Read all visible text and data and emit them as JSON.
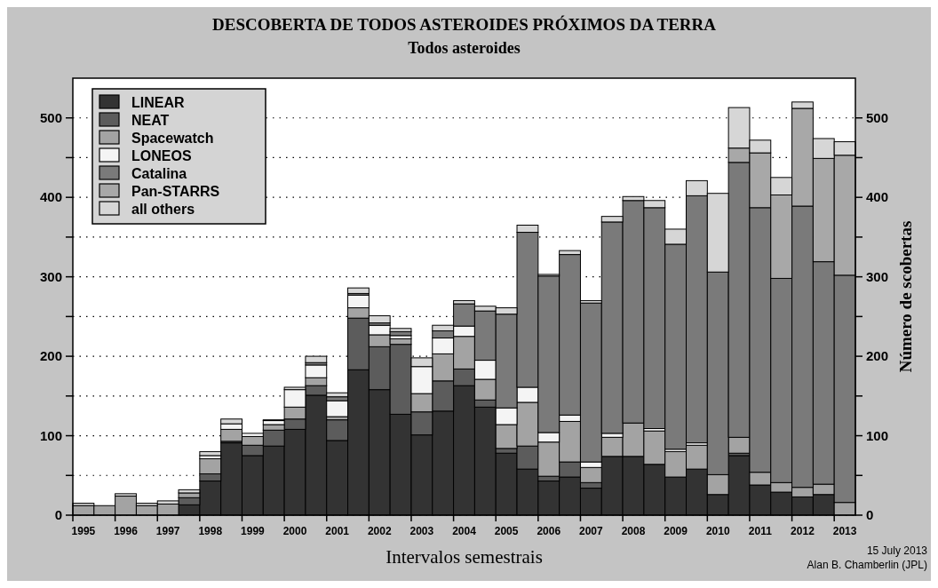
{
  "chart_data": {
    "type": "bar",
    "title": "DESCOBERTA DE TODOS ASTEROIDES PRÓXIMOS DA TERRA",
    "subtitle": "Todos asteroides",
    "xlabel": "Intervalos semestrais",
    "y2label": "Número de scobertas",
    "categories": [
      "1995",
      null,
      "1996",
      null,
      "1997",
      null,
      "1998",
      null,
      "1999",
      null,
      "2000",
      null,
      "2001",
      null,
      "2002",
      null,
      "2003",
      null,
      "2004",
      null,
      "2005",
      null,
      "2006",
      null,
      "2007",
      null,
      "2008",
      null,
      "2009",
      null,
      "2010",
      null,
      "2011",
      null,
      "2012",
      null,
      "2013"
    ],
    "stacked": true,
    "series": [
      {
        "name": "LINEAR",
        "color": "#333333",
        "values": [
          0,
          0,
          null,
          0,
          null,
          13,
          43,
          91,
          75,
          87,
          108,
          151,
          94,
          183,
          158,
          127,
          101,
          131,
          163,
          136,
          78,
          58,
          43,
          48,
          34,
          74,
          74,
          64,
          48,
          58,
          26,
          75,
          38,
          29,
          23,
          26,
          null
        ]
      },
      {
        "name": "NEAT",
        "color": "#5c5c5c",
        "values": [
          0,
          0,
          0,
          0,
          0,
          9,
          9,
          2,
          13,
          20,
          13,
          12,
          26,
          65,
          54,
          88,
          29,
          38,
          21,
          9,
          6,
          29,
          6,
          19,
          7,
          0,
          0,
          0,
          0,
          0,
          null,
          3,
          0,
          0,
          0,
          0,
          0
        ]
      },
      {
        "name": "Spacewatch",
        "color": "#a3a3a3",
        "values": [
          12,
          12,
          24,
          12,
          14,
          6,
          19,
          15,
          11,
          7,
          15,
          10,
          4,
          13,
          15,
          7,
          23,
          34,
          41,
          26,
          30,
          55,
          43,
          51,
          19,
          24,
          42,
          42,
          32,
          30,
          25,
          20,
          16,
          12,
          12,
          13,
          16
        ]
      },
      {
        "name": "LONEOS",
        "color": "#f4f4f4",
        "values": [
          0,
          0,
          0,
          0,
          0,
          0,
          4,
          7,
          4,
          5,
          22,
          16,
          20,
          16,
          12,
          4,
          34,
          20,
          13,
          24,
          21,
          19,
          12,
          8,
          7,
          5,
          0,
          3,
          3,
          3,
          0,
          0,
          0,
          0,
          0,
          0,
          0
        ]
      },
      {
        "name": "Catalina",
        "color": "#7a7a7a",
        "values": [
          0,
          0,
          0,
          0,
          0,
          0,
          0,
          0,
          0,
          0,
          0,
          3,
          5,
          2,
          3,
          5,
          null,
          9,
          28,
          62,
          118,
          195,
          197,
          202,
          200,
          266,
          280,
          278,
          258,
          311,
          255,
          346,
          333,
          257,
          354,
          280,
          286
        ]
      },
      {
        "name": "Pan-STARRS",
        "color": "#a8a8a8",
        "values": [
          0,
          0,
          0,
          0,
          0,
          0,
          0,
          0,
          0,
          0,
          0,
          0,
          0,
          0,
          0,
          0,
          0,
          0,
          0,
          0,
          0,
          0,
          0,
          0,
          0,
          0,
          0,
          0,
          0,
          0,
          0,
          18,
          69,
          105,
          123,
          130,
          151
        ]
      },
      {
        "name": "all others",
        "color": "#d6d6d6",
        "values": [
          3,
          0,
          3,
          3,
          4,
          4,
          5,
          6,
          0,
          1,
          3,
          8,
          5,
          7,
          9,
          4,
          11,
          7,
          4,
          6,
          8,
          9,
          2,
          5,
          3,
          7,
          5,
          9,
          19,
          19,
          99,
          51,
          16,
          22,
          8,
          25,
          17
        ]
      }
    ],
    "ylim": [
      0,
      550
    ],
    "yticks": [
      0,
      {
        "value": 50,
        "label": null
      },
      100,
      {
        "value": 150,
        "label": null
      },
      200,
      {
        "value": 250,
        "label": null
      },
      300,
      {
        "value": 350,
        "label": null
      },
      400,
      {
        "value": 450,
        "label": null
      },
      500
    ],
    "y2lim": [
      0,
      550
    ],
    "y2ticks": [
      0,
      {
        "value": 50,
        "label": null
      },
      100,
      {
        "value": 150,
        "label": null
      },
      200,
      {
        "value": 250,
        "label": null
      },
      300,
      {
        "value": 350,
        "label": null
      },
      400,
      {
        "value": 450,
        "label": null
      },
      500
    ],
    "grid": "y",
    "legend": "top left",
    "annotations": [
      "15 July 2013",
      "Alan B. Chamberlin (JPL)"
    ]
  }
}
